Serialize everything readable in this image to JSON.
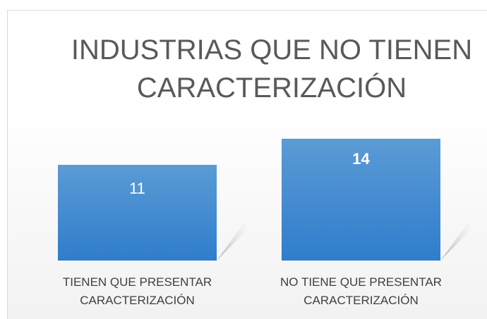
{
  "chart_data": {
    "type": "bar",
    "title": "INDUSTRIAS QUE NO TIENEN CARACTERIZACIÓN",
    "categories": [
      "TIENEN QUE PRESENTAR CARACTERIZACIÓN",
      "NO TIENE QUE PRESENTAR CARACTERIZACIÓN"
    ],
    "values": [
      11,
      14
    ],
    "color": "#4a8fd6",
    "ylim": [
      0,
      14
    ]
  }
}
